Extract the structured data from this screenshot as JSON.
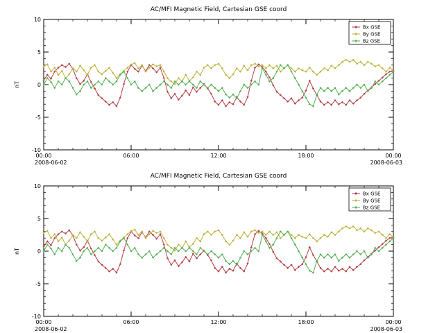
{
  "page": {
    "background": "#ffffff"
  },
  "chart_data": {
    "type": "line",
    "panels": [
      {
        "title": "AC/MFI Magnetic Field, Cartesian GSE coord"
      },
      {
        "title": "AC/MFI Magnetic Field, Cartesian GSE coord"
      }
    ],
    "ylabel": "nT",
    "ylim": [
      -10,
      10
    ],
    "yticks": [
      -10,
      -5,
      0,
      5,
      10
    ],
    "y_minor_step": 1,
    "xlim_hours": [
      0,
      24
    ],
    "x_minor_step_hours": 1,
    "xticks": [
      {
        "hour": 0,
        "label": "00:00",
        "date": "2008-06-02"
      },
      {
        "hour": 6,
        "label": "06:00"
      },
      {
        "hour": 12,
        "label": "12:00"
      },
      {
        "hour": 18,
        "label": "18:00"
      },
      {
        "hour": 24,
        "label": "00:00",
        "date": "2008-06-03"
      }
    ],
    "legend": {
      "position": "top-right"
    },
    "x_hours": {
      "start": 0,
      "step": 0.25,
      "count": 97
    },
    "series": [
      {
        "name": "Bx GSE",
        "color": "#b34045",
        "values": [
          0.7,
          1.5,
          0.9,
          2.0,
          2.6,
          3.0,
          2.7,
          3.2,
          2.4,
          1.0,
          0.1,
          0.6,
          1.6,
          0.4,
          -0.6,
          -1.6,
          -2.1,
          -2.6,
          -3.1,
          -2.7,
          -3.3,
          -2.0,
          0.1,
          2.0,
          3.0,
          2.4,
          2.0,
          2.9,
          2.1,
          3.0,
          2.5,
          1.9,
          2.6,
          1.0,
          -1.1,
          -2.1,
          -1.4,
          -2.3,
          -1.7,
          -0.9,
          -1.6,
          -0.4,
          -1.1,
          -0.5,
          0.1,
          -0.6,
          -1.4,
          -2.6,
          -3.1,
          -2.4,
          -3.3,
          -2.7,
          -3.0,
          -1.9,
          -2.6,
          -3.1,
          -1.9,
          0.6,
          2.6,
          3.1,
          2.7,
          2.0,
          1.1,
          -0.1,
          -1.1,
          -1.6,
          -2.1,
          -2.6,
          -2.1,
          -2.9,
          -2.4,
          -2.0,
          -0.9,
          0.6,
          -0.6,
          -1.6,
          -2.6,
          -3.1,
          -2.7,
          -3.1,
          -2.4,
          -3.0,
          -2.7,
          -3.1,
          -2.4,
          -2.9,
          -2.4,
          -2.0,
          -1.4,
          -0.9,
          -0.4,
          0.1,
          0.6,
          1.1,
          1.6,
          2.0,
          2.2
        ]
      },
      {
        "name": "By GSE",
        "color": "#bdb33c",
        "values": [
          2.8,
          3.1,
          2.0,
          2.6,
          1.5,
          2.1,
          1.0,
          1.6,
          2.5,
          2.0,
          2.9,
          2.2,
          1.5,
          2.6,
          3.0,
          2.0,
          1.6,
          2.1,
          2.6,
          1.8,
          1.0,
          1.6,
          2.1,
          2.6,
          3.1,
          3.3,
          2.5,
          3.0,
          2.0,
          2.6,
          3.1,
          2.8,
          3.0,
          2.0,
          1.0,
          0.5,
          0.1,
          1.0,
          0.5,
          1.5,
          0.6,
          1.1,
          2.0,
          1.5,
          2.6,
          3.0,
          2.5,
          3.0,
          3.2,
          2.5,
          1.5,
          1.0,
          1.6,
          2.5,
          2.0,
          2.9,
          2.2,
          3.0,
          3.2,
          2.8,
          3.0,
          2.5,
          3.0,
          2.5,
          2.9,
          2.0,
          2.5,
          3.0,
          2.5,
          2.0,
          2.5,
          2.2,
          2.0,
          2.6,
          2.0,
          1.5,
          2.0,
          2.5,
          2.2,
          2.9,
          2.5,
          3.0,
          3.5,
          3.8,
          3.5,
          3.8,
          3.2,
          3.5,
          3.0,
          3.5,
          3.2,
          2.8,
          3.0,
          2.5,
          2.0,
          2.6,
          2.1
        ]
      },
      {
        "name": "Bz GSE",
        "color": "#55b054",
        "values": [
          0.0,
          1.0,
          0.4,
          -0.5,
          0.5,
          0.0,
          1.0,
          0.5,
          -0.5,
          -1.5,
          -1.0,
          0.0,
          0.5,
          -0.5,
          0.0,
          0.5,
          0.0,
          1.0,
          0.5,
          0.0,
          0.5,
          1.5,
          2.0,
          1.0,
          0.0,
          0.5,
          -0.5,
          -1.0,
          -0.5,
          0.0,
          -1.0,
          -0.5,
          0.0,
          0.5,
          0.0,
          -0.5,
          0.5,
          0.0,
          0.5,
          0.0,
          0.5,
          0.0,
          -0.5,
          0.5,
          0.0,
          -0.5,
          0.0,
          -0.5,
          -1.0,
          -0.5,
          -1.5,
          -2.0,
          -1.5,
          -2.1,
          -1.0,
          0.0,
          -0.5,
          0.0,
          0.5,
          0.0,
          2.5,
          1.5,
          0.5,
          1.0,
          2.0,
          3.0,
          2.5,
          3.0,
          2.0,
          1.0,
          0.0,
          -1.0,
          -2.0,
          -3.0,
          -3.3,
          -1.5,
          -0.5,
          -1.0,
          -0.5,
          -1.0,
          -0.5,
          -1.5,
          -1.0,
          -0.5,
          -1.0,
          -0.5,
          0.0,
          -0.5,
          0.0,
          -1.0,
          -0.5,
          0.5,
          0.0,
          0.5,
          1.0,
          1.5,
          2.0
        ]
      }
    ]
  }
}
